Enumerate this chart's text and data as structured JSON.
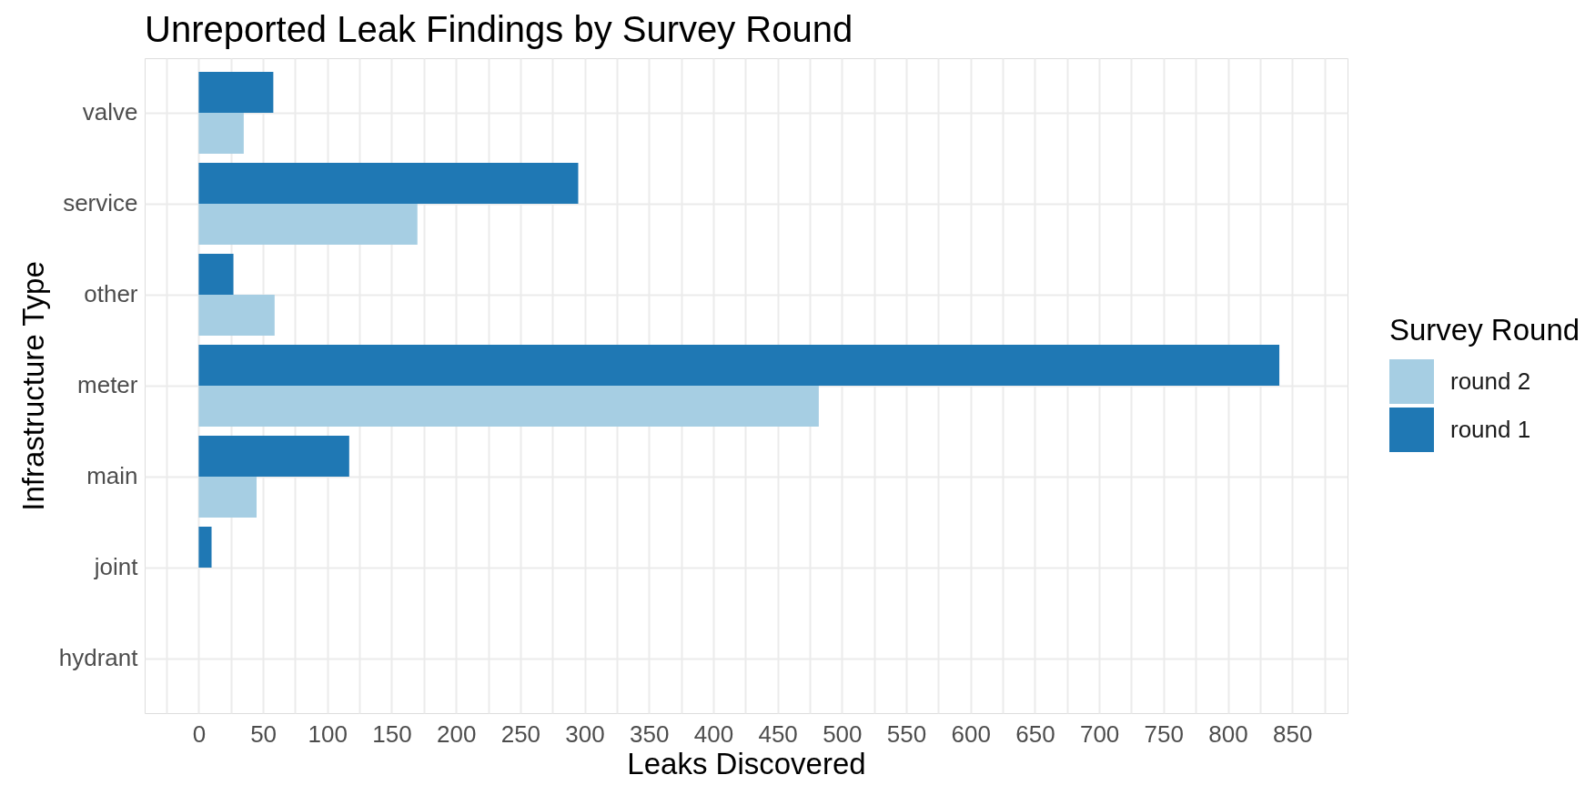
{
  "chart_data": {
    "type": "bar",
    "orientation": "horizontal",
    "title": "Unreported Leak Findings by Survey Round",
    "xlabel": "Leaks Discovered",
    "ylabel": "Infrastructure Type",
    "legend_title": "Survey Round",
    "categories": [
      "valve",
      "service",
      "other",
      "meter",
      "main",
      "joint",
      "hydrant"
    ],
    "series": [
      {
        "name": "round 2",
        "color": "#a6cee3",
        "values": [
          35,
          170,
          59,
          482,
          45,
          null,
          null
        ]
      },
      {
        "name": "round 1",
        "color": "#1f78b4",
        "values": [
          58,
          295,
          27,
          840,
          117,
          10,
          null
        ]
      }
    ],
    "xlim": [
      -42,
      893
    ],
    "xticks": [
      {
        "value": -25,
        "label": null
      },
      0,
      {
        "value": 25,
        "label": null
      },
      50,
      {
        "value": 75,
        "label": null
      },
      100,
      {
        "value": 125,
        "label": null
      },
      150,
      {
        "value": 175,
        "label": null
      },
      200,
      {
        "value": 225,
        "label": null
      },
      250,
      {
        "value": 275,
        "label": null
      },
      300,
      {
        "value": 325,
        "label": null
      },
      350,
      {
        "value": 375,
        "label": null
      },
      400,
      {
        "value": 425,
        "label": null
      },
      450,
      {
        "value": 475,
        "label": null
      },
      500,
      {
        "value": 525,
        "label": null
      },
      550,
      {
        "value": 575,
        "label": null
      },
      600,
      {
        "value": 625,
        "label": null
      },
      650,
      {
        "value": 675,
        "label": null
      },
      700,
      {
        "value": 725,
        "label": null
      },
      750,
      {
        "value": 775,
        "label": null
      },
      800,
      {
        "value": 825,
        "label": null
      },
      850,
      {
        "value": 875,
        "label": null
      }
    ],
    "grid": true,
    "legend": "right"
  }
}
